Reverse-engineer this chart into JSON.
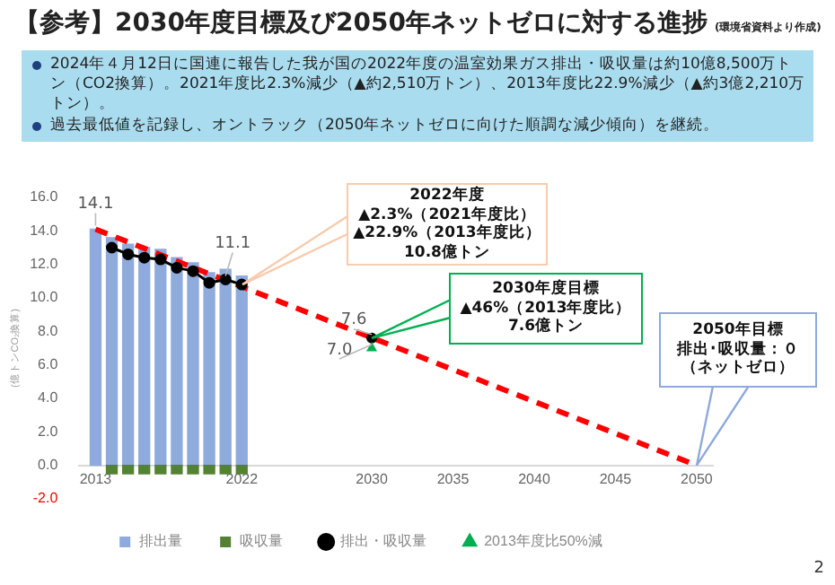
{
  "chart_data": {
    "type": "bar",
    "title": "【参考】2030年度目標及び2050年ネットゼロに対する進捗",
    "subtitle": "(環境省資料より作成)",
    "ylabel": "(億トンCO₂換算)",
    "x": [
      2013,
      2014,
      2015,
      2016,
      2017,
      2018,
      2019,
      2020,
      2021,
      2022
    ],
    "xlim": [
      2012,
      2051
    ],
    "xticks": [
      2013,
      2022,
      2030,
      2035,
      2040,
      2045,
      2050
    ],
    "ylim": [
      -2,
      16
    ],
    "yticks": [
      {
        "value": -2,
        "label": "-2.0"
      },
      {
        "value": 0,
        "label": "0.0"
      },
      {
        "value": 2,
        "label": "2.0"
      },
      {
        "value": 4,
        "label": "4.0"
      },
      {
        "value": 6,
        "label": "6.0"
      },
      {
        "value": 8,
        "label": "8.0"
      },
      {
        "value": 10,
        "label": "10.0"
      },
      {
        "value": 12,
        "label": "12.0"
      },
      {
        "value": 14,
        "label": "14.0"
      },
      {
        "value": 16,
        "label": "16.0"
      }
    ],
    "grid": false,
    "stacked": true,
    "legend": "bottom",
    "series": [
      {
        "name": "排出量",
        "color": "#8faadc",
        "values": [
          14.1,
          13.6,
          13.2,
          13.0,
          12.9,
          12.4,
          12.1,
          11.5,
          11.7,
          11.3
        ],
        "value_labels": [
          "14.1",
          null,
          null,
          null,
          null,
          null,
          null,
          null,
          null,
          null
        ]
      },
      {
        "name": "吸収量",
        "color": "#548235",
        "values": [
          null,
          -0.5,
          -0.5,
          -0.5,
          -0.5,
          -0.5,
          -0.5,
          -0.5,
          -0.5,
          -0.5
        ]
      },
      {
        "type": "line",
        "color": "#ff0000",
        "line_style": "dashed",
        "marker": "none",
        "x": [
          2013,
          2050
        ],
        "values": [
          14.1,
          0
        ]
      },
      {
        "name": "排出・吸収量",
        "type": "line",
        "color": "#000000",
        "line_style": "solid",
        "marker": "circle",
        "x": [
          2014,
          2015,
          2016,
          2017,
          2018,
          2019,
          2020,
          2021,
          2022
        ],
        "values": [
          13.0,
          12.6,
          12.4,
          12.3,
          11.8,
          11.6,
          10.9,
          11.1,
          10.8
        ],
        "value_labels": [
          null,
          null,
          null,
          null,
          null,
          null,
          null,
          "11.1",
          null
        ]
      },
      {
        "type": "scatter",
        "color": "#000000",
        "marker": "circle",
        "x": [
          2030
        ],
        "values": [
          7.6
        ],
        "value_labels": [
          "7.6"
        ]
      },
      {
        "name": "2013年度比50%減",
        "type": "scatter",
        "color": "#00b050",
        "marker": "triangle",
        "x": [
          2030
        ],
        "values": [
          7.0
        ],
        "value_labels": [
          "7.0"
        ]
      }
    ],
    "annotations": [
      "2024年４月12日に国連に報告した我が国の2022年度の温室効果ガス排出・吸収量は約10億8,500万トン（CO2換算）。2021年度比2.3%減少（▲約2,510万トン）、2013年度比22.9%減少（▲約3億2,210万トン）。",
      "過去最低値を記録し、オントラック（2050年ネットゼロに向けた順調な減少傾向）を継続。",
      "2022年度",
      "▲2.3%（2021年度比）",
      "▲22.9%（2013年度比）",
      "10.8億トン",
      "2030年度目標",
      "▲46%（2013年度比）",
      "7.6億トン",
      "2050年目標",
      "排出･吸収量：０",
      "（ネットゼロ）",
      "2"
    ]
  }
}
